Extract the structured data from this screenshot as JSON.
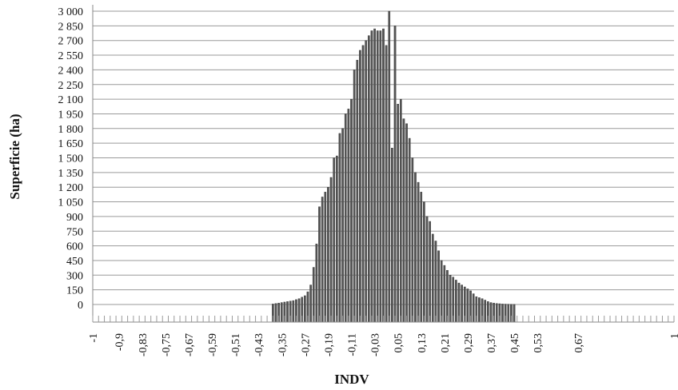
{
  "chart_data": {
    "type": "bar",
    "title": "",
    "xlabel": "INDV",
    "ylabel": "Superficie (ha)",
    "ylim": [
      -150,
      3100
    ],
    "yticks": [
      0,
      150,
      300,
      450,
      600,
      750,
      900,
      1050,
      1200,
      1350,
      1500,
      1650,
      1800,
      1950,
      2100,
      2250,
      2400,
      2550,
      2700,
      2850,
      3000
    ],
    "ytick_labels": [
      "0",
      "150",
      "300",
      "450",
      "600",
      "750",
      "900",
      "1 050",
      "1 200",
      "1 350",
      "1 500",
      "1 650",
      "1 800",
      "1 950",
      "2 100",
      "2 250",
      "2 400",
      "2 550",
      "2 700",
      "2 850",
      "3 000"
    ],
    "xlim": [
      -1,
      1
    ],
    "xticks": [
      -1,
      -0.91,
      -0.83,
      -0.75,
      -0.67,
      -0.59,
      -0.51,
      -0.43,
      -0.35,
      -0.27,
      -0.19,
      -0.11,
      -0.03,
      0.05,
      0.13,
      0.21,
      0.29,
      0.37,
      0.45,
      0.53,
      0.67,
      1
    ],
    "xtick_labels": [
      "-1",
      "-0,9",
      "-0,83",
      "-0,75",
      "-0,67",
      "-0,59",
      "-0,51",
      "-0,43",
      "-0,35",
      "-0,27",
      "-0,19",
      "-0,11",
      "-0,03",
      "0,05",
      "0,13",
      "0,21",
      "0,29",
      "0,37",
      "0,45",
      "0,53",
      "0,67",
      "1"
    ],
    "grid": true,
    "bar_color": "#555555",
    "x": [
      -0.38,
      -0.37,
      -0.36,
      -0.35,
      -0.34,
      -0.33,
      -0.32,
      -0.31,
      -0.3,
      -0.29,
      -0.28,
      -0.27,
      -0.26,
      -0.25,
      -0.24,
      -0.23,
      -0.22,
      -0.21,
      -0.2,
      -0.19,
      -0.18,
      -0.17,
      -0.16,
      -0.15,
      -0.14,
      -0.13,
      -0.12,
      -0.11,
      -0.1,
      -0.09,
      -0.08,
      -0.07,
      -0.06,
      -0.05,
      -0.04,
      -0.03,
      -0.02,
      -0.01,
      0,
      0.01,
      0.02,
      0.03,
      0.04,
      0.05,
      0.06,
      0.07,
      0.08,
      0.09,
      0.1,
      0.11,
      0.12,
      0.13,
      0.14,
      0.15,
      0.16,
      0.17,
      0.18,
      0.19,
      0.2,
      0.21,
      0.22,
      0.23,
      0.24,
      0.25,
      0.26,
      0.27,
      0.28,
      0.29,
      0.3,
      0.31,
      0.32,
      0.33,
      0.34,
      0.35,
      0.36,
      0.37,
      0.38,
      0.39,
      0.4,
      0.41,
      0.42,
      0.43,
      0.44,
      0.45
    ],
    "values": [
      5,
      10,
      15,
      20,
      25,
      30,
      35,
      40,
      50,
      60,
      75,
      90,
      130,
      200,
      380,
      620,
      1000,
      1100,
      1150,
      1200,
      1300,
      1500,
      1520,
      1750,
      1800,
      1950,
      2000,
      2100,
      2400,
      2500,
      2600,
      2650,
      2700,
      2750,
      2800,
      2820,
      2800,
      2800,
      2820,
      2650,
      3000,
      1600,
      2850,
      2050,
      2100,
      1900,
      1850,
      1700,
      1500,
      1350,
      1250,
      1150,
      1050,
      900,
      850,
      720,
      650,
      550,
      450,
      400,
      350,
      300,
      280,
      250,
      220,
      200,
      180,
      160,
      140,
      110,
      80,
      70,
      60,
      45,
      30,
      20,
      15,
      10,
      8,
      5,
      4,
      3,
      2,
      1
    ]
  }
}
